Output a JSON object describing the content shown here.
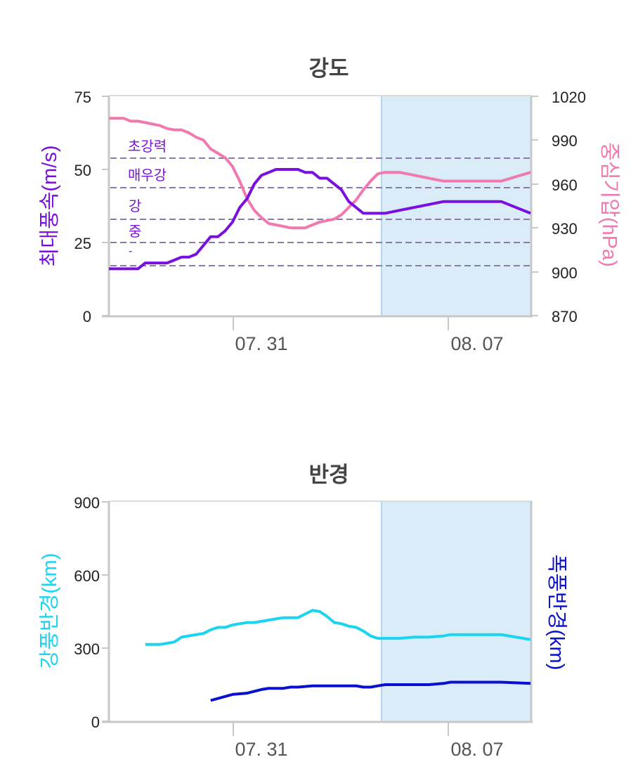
{
  "colors": {
    "wind": "#7a10e0",
    "pressure": "#f079b0",
    "strong_radius": "#1ad4f0",
    "storm_radius": "#0a10d0",
    "forecast_shade": "#d9ecf7",
    "threshold": "#8a7ab0",
    "axis": "#c8c8c8",
    "title": "#444444"
  },
  "chart_data": [
    {
      "type": "line",
      "title": "강도",
      "ylabel": "최대풍속(m/s)",
      "y2label": "중심기압(hPa)",
      "ylim": [
        0,
        75
      ],
      "y_ticks": [
        "0",
        "25",
        "50",
        "75"
      ],
      "y2lim": [
        870,
        1020
      ],
      "y2_ticks": [
        "870",
        "900",
        "930",
        "960",
        "990",
        "1020"
      ],
      "xlim": [
        0,
        58
      ],
      "x_ticks": [
        {
          "x": 17,
          "label": "07. 31"
        },
        {
          "x": 47,
          "label": "08. 07"
        }
      ],
      "forecast_start": 37.5,
      "thresholds": [
        {
          "value": 17,
          "label": "-"
        },
        {
          "value": 25,
          "label": "중"
        },
        {
          "value": 33,
          "label": "강"
        },
        {
          "value": 44,
          "label": "매우강"
        },
        {
          "value": 54,
          "label": "초강력"
        }
      ],
      "series": [
        {
          "name": "최대풍속",
          "axis": "left",
          "x": [
            0,
            4,
            5,
            8,
            9,
            10,
            11,
            12,
            13,
            14,
            15,
            16,
            17,
            18,
            19,
            20,
            21,
            22,
            23,
            24,
            25,
            26,
            27,
            28,
            29,
            30,
            31,
            32,
            33,
            34,
            35,
            36,
            37,
            38,
            40,
            42,
            44,
            46,
            47,
            50,
            54,
            58
          ],
          "values": [
            16,
            16,
            18,
            18,
            19,
            20,
            20,
            21,
            24,
            27,
            27,
            29,
            32,
            37,
            40,
            45,
            48,
            49,
            50,
            50,
            50,
            50,
            49,
            49,
            47,
            47,
            45,
            43,
            39,
            37,
            35,
            35,
            35,
            35,
            36,
            37,
            38,
            39,
            39,
            39,
            39,
            35
          ]
        },
        {
          "name": "중심기압",
          "axis": "right",
          "x": [
            0,
            2,
            3,
            4,
            5,
            6,
            7,
            8,
            9,
            10,
            11,
            12,
            13,
            14,
            15,
            16,
            17,
            18,
            19,
            20,
            21,
            22,
            23,
            24,
            25,
            26,
            27,
            28,
            29,
            30,
            31,
            32,
            33,
            34,
            35,
            36,
            37,
            38,
            40,
            42,
            44,
            46,
            47,
            50,
            54,
            58
          ],
          "values": [
            1005,
            1005,
            1003,
            1003,
            1002,
            1001,
            1000,
            998,
            997,
            997,
            995,
            992,
            990,
            984,
            981,
            978,
            972,
            962,
            950,
            942,
            937,
            933,
            932,
            931,
            930,
            930,
            930,
            932,
            934,
            935,
            936,
            939,
            944,
            949,
            956,
            962,
            967,
            968,
            968,
            966,
            964,
            962,
            962,
            962,
            962,
            968
          ]
        }
      ]
    },
    {
      "type": "line",
      "title": "반경",
      "ylabel": "강풍반경(km)",
      "y2label": "폭풍반경(km)",
      "ylim": [
        0,
        900
      ],
      "y_ticks": [
        "0",
        "300",
        "600",
        "900"
      ],
      "xlim": [
        0,
        58
      ],
      "x_ticks": [
        {
          "x": 17,
          "label": "07. 31"
        },
        {
          "x": 47,
          "label": "08. 07"
        }
      ],
      "forecast_start": 37.5,
      "series": [
        {
          "name": "강풍반경",
          "x": [
            5,
            7,
            8,
            9,
            10,
            12,
            13,
            14,
            15,
            16,
            17,
            18,
            19,
            20,
            21,
            22,
            23,
            24,
            25,
            26,
            27,
            28,
            29,
            30,
            31,
            32,
            33,
            34,
            35,
            36,
            37,
            38,
            40,
            42,
            44,
            46,
            47,
            50,
            54,
            58
          ],
          "values": [
            315,
            315,
            320,
            325,
            345,
            355,
            360,
            375,
            385,
            385,
            395,
            400,
            405,
            405,
            410,
            415,
            420,
            425,
            425,
            425,
            440,
            455,
            450,
            430,
            405,
            400,
            390,
            385,
            370,
            350,
            340,
            340,
            340,
            345,
            345,
            350,
            355,
            355,
            355,
            335
          ]
        },
        {
          "name": "폭풍반경",
          "x": [
            14,
            17,
            19,
            21,
            22,
            24,
            25,
            26,
            28,
            30,
            32,
            34,
            35,
            36,
            37,
            38,
            40,
            44,
            46,
            47,
            50,
            54,
            58
          ],
          "values": [
            85,
            110,
            115,
            130,
            135,
            135,
            140,
            140,
            145,
            145,
            145,
            145,
            140,
            140,
            145,
            150,
            150,
            150,
            155,
            160,
            160,
            160,
            155
          ]
        }
      ]
    }
  ]
}
